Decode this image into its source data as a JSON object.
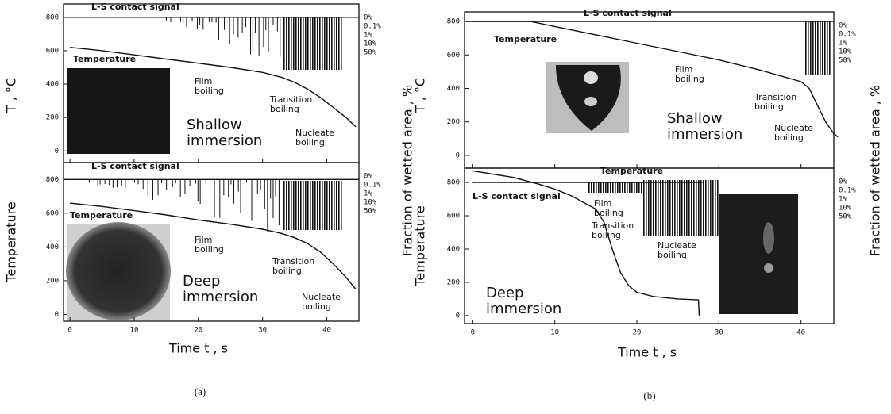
{
  "captions": [
    "(a)",
    "(b)"
  ],
  "chart_data": [
    {
      "type": "line",
      "ylabel": "T , °C",
      "xlim": [
        -1,
        45
      ],
      "ylim": [
        -70,
        880
      ],
      "xticks": [
        0,
        10,
        20,
        30,
        40
      ],
      "yticks": [
        0,
        200,
        400,
        600,
        800
      ],
      "y2labels": [
        "0%",
        "0.1%",
        "1%",
        "10%",
        "50%"
      ],
      "annotations": [
        [
          "Film",
          "boiling"
        ],
        [
          "Transition",
          "boiling"
        ],
        [
          "Shallow",
          "immersion"
        ],
        [
          "Nucleate",
          "boiling"
        ]
      ],
      "series": [
        {
          "name": "Temperature",
          "color": "#111111",
          "x": [
            0,
            5,
            10,
            15,
            20,
            25,
            30,
            33,
            35,
            37,
            39,
            41,
            43,
            44.5
          ],
          "values": [
            620,
            600,
            575,
            550,
            525,
            500,
            470,
            440,
            410,
            370,
            320,
            260,
            200,
            145
          ]
        },
        {
          "name": "L-S contact signal",
          "color": "#111111",
          "x": [
            -1,
            45
          ],
          "values": [
            800,
            800
          ]
        }
      ]
    },
    {
      "type": "line",
      "ylabel": "Temperature",
      "xlabel": "Time t , s",
      "y2label": "Fraction of wetted area , %",
      "xlim": [
        -1,
        45
      ],
      "ylim": [
        -40,
        900
      ],
      "xticks": [
        0,
        10,
        20,
        30,
        40
      ],
      "yticks": [
        0,
        200,
        400,
        600,
        800
      ],
      "y2labels": [
        "0%",
        "0.1%",
        "1%",
        "10%",
        "50%"
      ],
      "annotations": [
        [
          "Film",
          "boiling"
        ],
        [
          "Transition",
          "boiling"
        ],
        [
          "Deep",
          "immersion"
        ],
        [
          "Nucleate",
          "boiling"
        ]
      ],
      "series": [
        {
          "name": "Temperature",
          "color": "#111111",
          "x": [
            0,
            5,
            10,
            15,
            20,
            25,
            30,
            33,
            35,
            37,
            39,
            41,
            43,
            44.5
          ],
          "values": [
            660,
            640,
            615,
            590,
            560,
            535,
            505,
            480,
            455,
            420,
            370,
            300,
            220,
            150
          ]
        },
        {
          "name": "L-S contact signal",
          "color": "#111111",
          "x": [
            -1,
            45
          ],
          "values": [
            800,
            800
          ]
        }
      ]
    },
    {
      "type": "line",
      "ylabel": "T , °C",
      "xlim": [
        -1,
        44
      ],
      "ylim": [
        -76,
        857
      ],
      "xticks": [
        0,
        10,
        20,
        30,
        40
      ],
      "yticks": [
        0,
        200,
        400,
        600,
        800
      ],
      "y2labels": [
        "0%",
        "0.1%",
        "1%",
        "10%",
        "50%"
      ],
      "annotations": [
        [
          "Film",
          "boiling"
        ],
        [
          "Transition",
          "boiling"
        ],
        [
          "Shallow",
          "immersion"
        ],
        [
          "Nucleate",
          "boiling"
        ]
      ],
      "series": [
        {
          "name": "Temperature",
          "color": "#111111",
          "x": [
            0,
            7,
            10,
            15,
            20,
            25,
            30,
            35,
            40,
            41,
            42,
            43,
            44,
            44.5
          ],
          "values": [
            800,
            800,
            770,
            720,
            670,
            620,
            570,
            510,
            440,
            400,
            300,
            200,
            130,
            110
          ]
        },
        {
          "name": "L-S contact signal",
          "color": "#111111",
          "x": [
            -1,
            44
          ],
          "values": [
            800,
            800
          ]
        }
      ]
    },
    {
      "type": "line",
      "ylabel": "Temperature",
      "xlabel": "Time t , s",
      "y2label": "Fraction of wetted area , %",
      "xlim": [
        -1,
        44
      ],
      "ylim": [
        -48,
        886
      ],
      "xticks": [
        0,
        10,
        20,
        30,
        40
      ],
      "yticks": [
        0,
        200,
        400,
        600,
        800
      ],
      "y2labels": [
        "0%",
        "0.1%",
        "1%",
        "10%",
        "50%"
      ],
      "annotations": [
        [
          "Film",
          "boiling"
        ],
        [
          "Transition",
          "boiling"
        ],
        [
          "Nucleate",
          "boiling"
        ],
        [
          "Deep",
          "immersion"
        ]
      ],
      "series": [
        {
          "name": "Temperature",
          "color": "#111111",
          "x": [
            0,
            5,
            8,
            10,
            12,
            15,
            16,
            17,
            18,
            19,
            20,
            22,
            25,
            27.5,
            27.6
          ],
          "values": [
            870,
            830,
            790,
            760,
            720,
            640,
            560,
            400,
            260,
            180,
            140,
            115,
            100,
            95,
            0
          ]
        },
        {
          "name": "L-S contact signal",
          "color": "#111111",
          "x": [
            0,
            28
          ],
          "values": [
            800,
            800
          ]
        }
      ]
    }
  ]
}
